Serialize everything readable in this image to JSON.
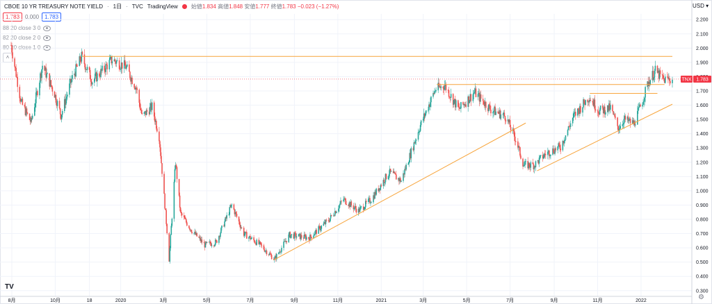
{
  "header": {
    "symbol_title": "CBOE 10 YR TREASURY NOTE YIELD",
    "interval": "1日",
    "exchange": "TVC",
    "source": "TradingView",
    "ohlc": [
      {
        "label": "始値",
        "value": "1.834"
      },
      {
        "label": "高値",
        "value": "1.848"
      },
      {
        "label": "安値",
        "value": "1.777"
      },
      {
        "label": "終値",
        "value": "1.783"
      }
    ],
    "change": "−0.023 (−1.27%)",
    "sell_price": "1.783",
    "spread": "0.000",
    "buy_price": "1.783"
  },
  "indicators": [
    {
      "label": "88 20 close 3 0",
      "icon": "eye-icon"
    },
    {
      "label": "82 20 close 2 0",
      "icon": "eye-icon"
    },
    {
      "label": "80 20 close 1 0",
      "icon": "eye-icon"
    }
  ],
  "currency": "USD",
  "price_badge": {
    "symbol": "TNX",
    "value": "1.783"
  },
  "colors": {
    "up": "#26a69a",
    "down": "#ef5350",
    "line": "#f7a43b",
    "badge": "#f23645",
    "grid": "#f0f3fa"
  },
  "chart_data": {
    "type": "candlestick",
    "y_axis_labels": [
      "2.200",
      "2.100",
      "2.000",
      "1.900",
      "1.800",
      "1.700",
      "1.600",
      "1.500",
      "1.400",
      "1.300",
      "1.200",
      "1.100",
      "1.000",
      "0.900",
      "0.800",
      "0.700",
      "0.600",
      "0.500",
      "0.400",
      "0.300"
    ],
    "ylim": [
      0.26,
      2.24
    ],
    "x_axis_labels": [
      "8月",
      "10月",
      "18",
      "2020",
      "3月",
      "5月",
      "7月",
      "9月",
      "11月",
      "2021",
      "3月",
      "5月",
      "7月",
      "9月",
      "11月",
      "2022"
    ],
    "x_range": [
      "2019-07-31",
      "2022-02-14"
    ],
    "x_ticks": [
      "2019-08-01",
      "2019-10-01",
      "2019-11-18",
      "2020-01-01",
      "2020-03-01",
      "2020-05-01",
      "2020-07-01",
      "2020-09-01",
      "2020-11-01",
      "2021-01-01",
      "2021-03-01",
      "2021-05-01",
      "2021-07-01",
      "2021-09-01",
      "2021-11-01",
      "2022-01-01"
    ],
    "path": [
      [
        "2019-07-31",
        2.02
      ],
      [
        "2019-08-14",
        1.62
      ],
      [
        "2019-08-28",
        1.48
      ],
      [
        "2019-09-13",
        1.88
      ],
      [
        "2019-09-30",
        1.68
      ],
      [
        "2019-10-09",
        1.53
      ],
      [
        "2019-10-24",
        1.78
      ],
      [
        "2019-11-07",
        1.94
      ],
      [
        "2019-11-22",
        1.77
      ],
      [
        "2019-12-06",
        1.84
      ],
      [
        "2019-12-20",
        1.92
      ],
      [
        "2020-01-08",
        1.87
      ],
      [
        "2020-01-23",
        1.72
      ],
      [
        "2020-01-31",
        1.52
      ],
      [
        "2020-02-14",
        1.59
      ],
      [
        "2020-02-24",
        1.38
      ],
      [
        "2020-03-06",
        0.72
      ],
      [
        "2020-03-09",
        0.52
      ],
      [
        "2020-03-18",
        1.2
      ],
      [
        "2020-03-25",
        0.84
      ],
      [
        "2020-04-10",
        0.72
      ],
      [
        "2020-04-28",
        0.62
      ],
      [
        "2020-05-14",
        0.64
      ],
      [
        "2020-06-05",
        0.9
      ],
      [
        "2020-06-22",
        0.7
      ],
      [
        "2020-07-15",
        0.62
      ],
      [
        "2020-08-04",
        0.52
      ],
      [
        "2020-08-25",
        0.69
      ],
      [
        "2020-09-22",
        0.67
      ],
      [
        "2020-10-20",
        0.8
      ],
      [
        "2020-11-09",
        0.94
      ],
      [
        "2020-11-30",
        0.86
      ],
      [
        "2020-12-18",
        0.94
      ],
      [
        "2021-01-12",
        1.13
      ],
      [
        "2021-01-29",
        1.07
      ],
      [
        "2021-02-25",
        1.46
      ],
      [
        "2021-03-18",
        1.71
      ],
      [
        "2021-03-31",
        1.74
      ],
      [
        "2021-04-20",
        1.57
      ],
      [
        "2021-05-12",
        1.69
      ],
      [
        "2021-06-04",
        1.57
      ],
      [
        "2021-06-25",
        1.52
      ],
      [
        "2021-07-09",
        1.36
      ],
      [
        "2021-07-20",
        1.18
      ],
      [
        "2021-08-04",
        1.18
      ],
      [
        "2021-08-20",
        1.26
      ],
      [
        "2021-09-10",
        1.31
      ],
      [
        "2021-09-28",
        1.52
      ],
      [
        "2021-10-20",
        1.66
      ],
      [
        "2021-11-03",
        1.56
      ],
      [
        "2021-11-19",
        1.58
      ],
      [
        "2021-11-30",
        1.44
      ],
      [
        "2021-12-08",
        1.5
      ],
      [
        "2021-12-22",
        1.47
      ],
      [
        "2022-01-03",
        1.63
      ],
      [
        "2022-01-11",
        1.76
      ],
      [
        "2022-01-21",
        1.84
      ],
      [
        "2022-02-01",
        1.78
      ],
      [
        "2022-02-14",
        1.783
      ]
    ],
    "horizontal_lines": [
      {
        "y": 1.942,
        "from": "2019-11-08",
        "to": "2022-02-14"
      },
      {
        "y": 1.745,
        "from": "2021-03-20",
        "to": "2022-02-03"
      },
      {
        "y": 1.683,
        "from": "2021-10-21",
        "to": "2022-01-24"
      }
    ],
    "trend_lines": [
      {
        "from": [
          "2020-08-03",
          0.515
        ],
        "to": [
          "2021-07-23",
          1.475
        ]
      },
      {
        "from": [
          "2021-08-08",
          1.14
        ],
        "to": [
          "2022-02-14",
          1.607
        ]
      }
    ],
    "current_price_line": 1.783
  }
}
